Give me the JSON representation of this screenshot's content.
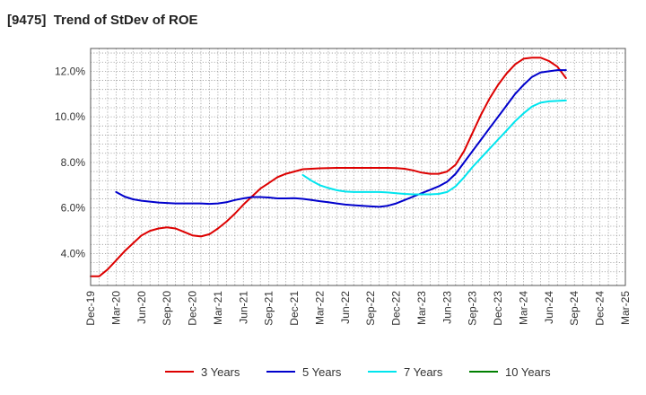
{
  "chart_data": {
    "type": "line",
    "title": "[9475]  Trend of StDev of ROE",
    "xlabel": "",
    "ylabel": "",
    "x_ticks": [
      "Dec-19",
      "Mar-20",
      "Jun-20",
      "Sep-20",
      "Dec-20",
      "Mar-21",
      "Jun-21",
      "Sep-21",
      "Dec-21",
      "Mar-22",
      "Jun-22",
      "Sep-22",
      "Dec-22",
      "Mar-23",
      "Jun-23",
      "Sep-23",
      "Dec-23",
      "Mar-24",
      "Jun-24",
      "Sep-24",
      "Dec-24",
      "Mar-25"
    ],
    "y_ticks": [
      4.0,
      6.0,
      8.0,
      10.0,
      12.0
    ],
    "y_tick_labels": [
      "4.0%",
      "6.0%",
      "8.0%",
      "10.0%",
      "12.0%"
    ],
    "ylim": [
      2.6,
      13.0
    ],
    "y_unit": "%",
    "grid": true,
    "legend_position": "bottom",
    "series": [
      {
        "name": "3 Years",
        "color": "#dd0000",
        "points": [
          [
            0,
            3.0
          ],
          [
            1,
            3.0
          ],
          [
            2,
            3.3
          ],
          [
            3,
            3.7
          ],
          [
            4,
            4.1
          ],
          [
            5,
            4.45
          ],
          [
            6,
            4.8
          ],
          [
            7,
            5.0
          ],
          [
            8,
            5.1
          ],
          [
            9,
            5.15
          ],
          [
            10,
            5.1
          ],
          [
            11,
            4.95
          ],
          [
            12,
            4.8
          ],
          [
            13,
            4.75
          ],
          [
            14,
            4.85
          ],
          [
            15,
            5.1
          ],
          [
            16,
            5.4
          ],
          [
            17,
            5.75
          ],
          [
            18,
            6.15
          ],
          [
            19,
            6.5
          ],
          [
            20,
            6.85
          ],
          [
            21,
            7.1
          ],
          [
            22,
            7.35
          ],
          [
            23,
            7.5
          ],
          [
            24,
            7.6
          ],
          [
            25,
            7.7
          ],
          [
            26,
            7.72
          ],
          [
            27,
            7.74
          ],
          [
            28,
            7.75
          ],
          [
            29,
            7.76
          ],
          [
            30,
            7.76
          ],
          [
            31,
            7.76
          ],
          [
            32,
            7.76
          ],
          [
            33,
            7.76
          ],
          [
            34,
            7.76
          ],
          [
            35,
            7.76
          ],
          [
            36,
            7.75
          ],
          [
            37,
            7.72
          ],
          [
            38,
            7.65
          ],
          [
            39,
            7.55
          ],
          [
            40,
            7.5
          ],
          [
            41,
            7.5
          ],
          [
            42,
            7.6
          ],
          [
            43,
            7.9
          ],
          [
            44,
            8.5
          ],
          [
            45,
            9.3
          ],
          [
            46,
            10.1
          ],
          [
            47,
            10.8
          ],
          [
            48,
            11.4
          ],
          [
            49,
            11.9
          ],
          [
            50,
            12.3
          ],
          [
            51,
            12.55
          ],
          [
            52,
            12.6
          ],
          [
            53,
            12.6
          ],
          [
            54,
            12.45
          ],
          [
            55,
            12.2
          ],
          [
            56,
            11.7
          ]
        ]
      },
      {
        "name": "5 Years",
        "color": "#0000cc",
        "points": [
          [
            3,
            6.7
          ],
          [
            4,
            6.5
          ],
          [
            5,
            6.38
          ],
          [
            6,
            6.32
          ],
          [
            7,
            6.28
          ],
          [
            8,
            6.24
          ],
          [
            9,
            6.22
          ],
          [
            10,
            6.2
          ],
          [
            11,
            6.2
          ],
          [
            12,
            6.2
          ],
          [
            13,
            6.2
          ],
          [
            14,
            6.18
          ],
          [
            15,
            6.2
          ],
          [
            16,
            6.25
          ],
          [
            17,
            6.35
          ],
          [
            18,
            6.42
          ],
          [
            19,
            6.48
          ],
          [
            20,
            6.48
          ],
          [
            21,
            6.46
          ],
          [
            22,
            6.42
          ],
          [
            23,
            6.42
          ],
          [
            24,
            6.43
          ],
          [
            25,
            6.4
          ],
          [
            26,
            6.35
          ],
          [
            27,
            6.3
          ],
          [
            28,
            6.25
          ],
          [
            29,
            6.2
          ],
          [
            30,
            6.15
          ],
          [
            31,
            6.12
          ],
          [
            32,
            6.1
          ],
          [
            33,
            6.07
          ],
          [
            34,
            6.05
          ],
          [
            35,
            6.1
          ],
          [
            36,
            6.2
          ],
          [
            37,
            6.35
          ],
          [
            38,
            6.5
          ],
          [
            39,
            6.65
          ],
          [
            40,
            6.8
          ],
          [
            41,
            6.95
          ],
          [
            42,
            7.15
          ],
          [
            43,
            7.5
          ],
          [
            44,
            8.0
          ],
          [
            45,
            8.5
          ],
          [
            46,
            9.0
          ],
          [
            47,
            9.5
          ],
          [
            48,
            10.0
          ],
          [
            49,
            10.5
          ],
          [
            50,
            11.0
          ],
          [
            51,
            11.4
          ],
          [
            52,
            11.75
          ],
          [
            53,
            11.95
          ],
          [
            54,
            12.0
          ],
          [
            55,
            12.05
          ],
          [
            56,
            12.05
          ]
        ]
      },
      {
        "name": "7 Years",
        "color": "#00e5ee",
        "points": [
          [
            25,
            7.45
          ],
          [
            26,
            7.2
          ],
          [
            27,
            7.0
          ],
          [
            28,
            6.88
          ],
          [
            29,
            6.78
          ],
          [
            30,
            6.72
          ],
          [
            31,
            6.7
          ],
          [
            32,
            6.7
          ],
          [
            33,
            6.7
          ],
          [
            34,
            6.7
          ],
          [
            35,
            6.68
          ],
          [
            36,
            6.65
          ],
          [
            37,
            6.62
          ],
          [
            38,
            6.6
          ],
          [
            39,
            6.6
          ],
          [
            40,
            6.6
          ],
          [
            41,
            6.62
          ],
          [
            42,
            6.7
          ],
          [
            43,
            6.95
          ],
          [
            44,
            7.35
          ],
          [
            45,
            7.8
          ],
          [
            46,
            8.2
          ],
          [
            47,
            8.6
          ],
          [
            48,
            9.0
          ],
          [
            49,
            9.4
          ],
          [
            50,
            9.8
          ],
          [
            51,
            10.15
          ],
          [
            52,
            10.45
          ],
          [
            53,
            10.62
          ],
          [
            54,
            10.68
          ],
          [
            55,
            10.7
          ],
          [
            56,
            10.72
          ]
        ]
      },
      {
        "name": "10 Years",
        "color": "#008000",
        "points": []
      }
    ]
  }
}
